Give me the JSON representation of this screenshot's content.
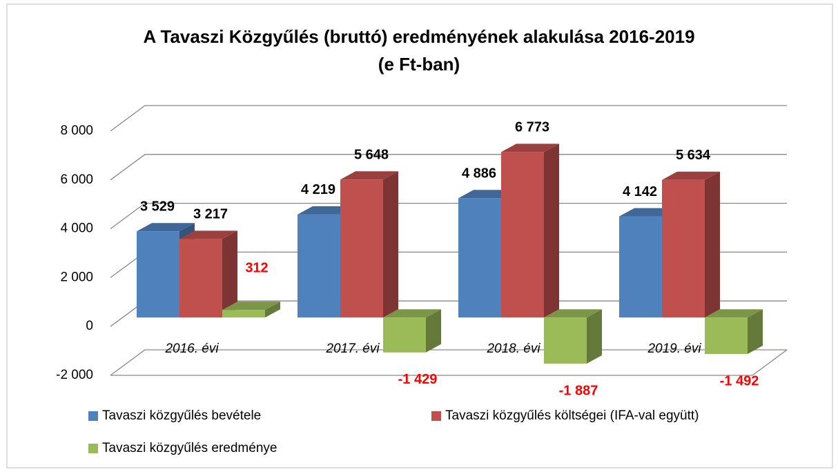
{
  "chart_data": {
    "type": "bar3d",
    "title": [
      "A Tavaszi Közgyűlés (bruttó) eredményének alakulása 2016-2019",
      "(e Ft-ban)"
    ],
    "categories": [
      "2016. évi",
      "2017. évi",
      "2018. évi",
      "2019. évi"
    ],
    "series": [
      {
        "name": "Tavaszi közgyűlés bevétele",
        "color": "#4f81bd",
        "label_color": "#000000",
        "values": [
          3529,
          4219,
          4886,
          4142
        ],
        "value_labels": [
          "3 529",
          "4 219",
          "4 886",
          "4 142"
        ]
      },
      {
        "name": "Tavaszi közgyűlés költségei (IFA-val együtt)",
        "color": "#c0504d",
        "label_color": "#000000",
        "values": [
          3217,
          5648,
          6773,
          5634
        ],
        "value_labels": [
          "3 217",
          "5 648",
          "6 773",
          "5 634"
        ]
      },
      {
        "name": "Tavaszi közgyűlés eredménye",
        "color": "#9bbb59",
        "label_color": "#ff0000",
        "values": [
          312,
          -1429,
          -1887,
          -1492
        ],
        "value_labels": [
          "312",
          "-1 429",
          "-1 887",
          "-1 492"
        ]
      }
    ],
    "ylim": [
      -2000,
      8000
    ],
    "yticks": [
      {
        "value": -2000,
        "label": "-2 000"
      },
      0,
      {
        "value": 2000,
        "label": "2 000"
      },
      {
        "value": 4000,
        "label": "4 000"
      },
      {
        "value": 6000,
        "label": "6 000"
      },
      {
        "value": 8000,
        "label": "8 000"
      }
    ],
    "grid": true
  }
}
